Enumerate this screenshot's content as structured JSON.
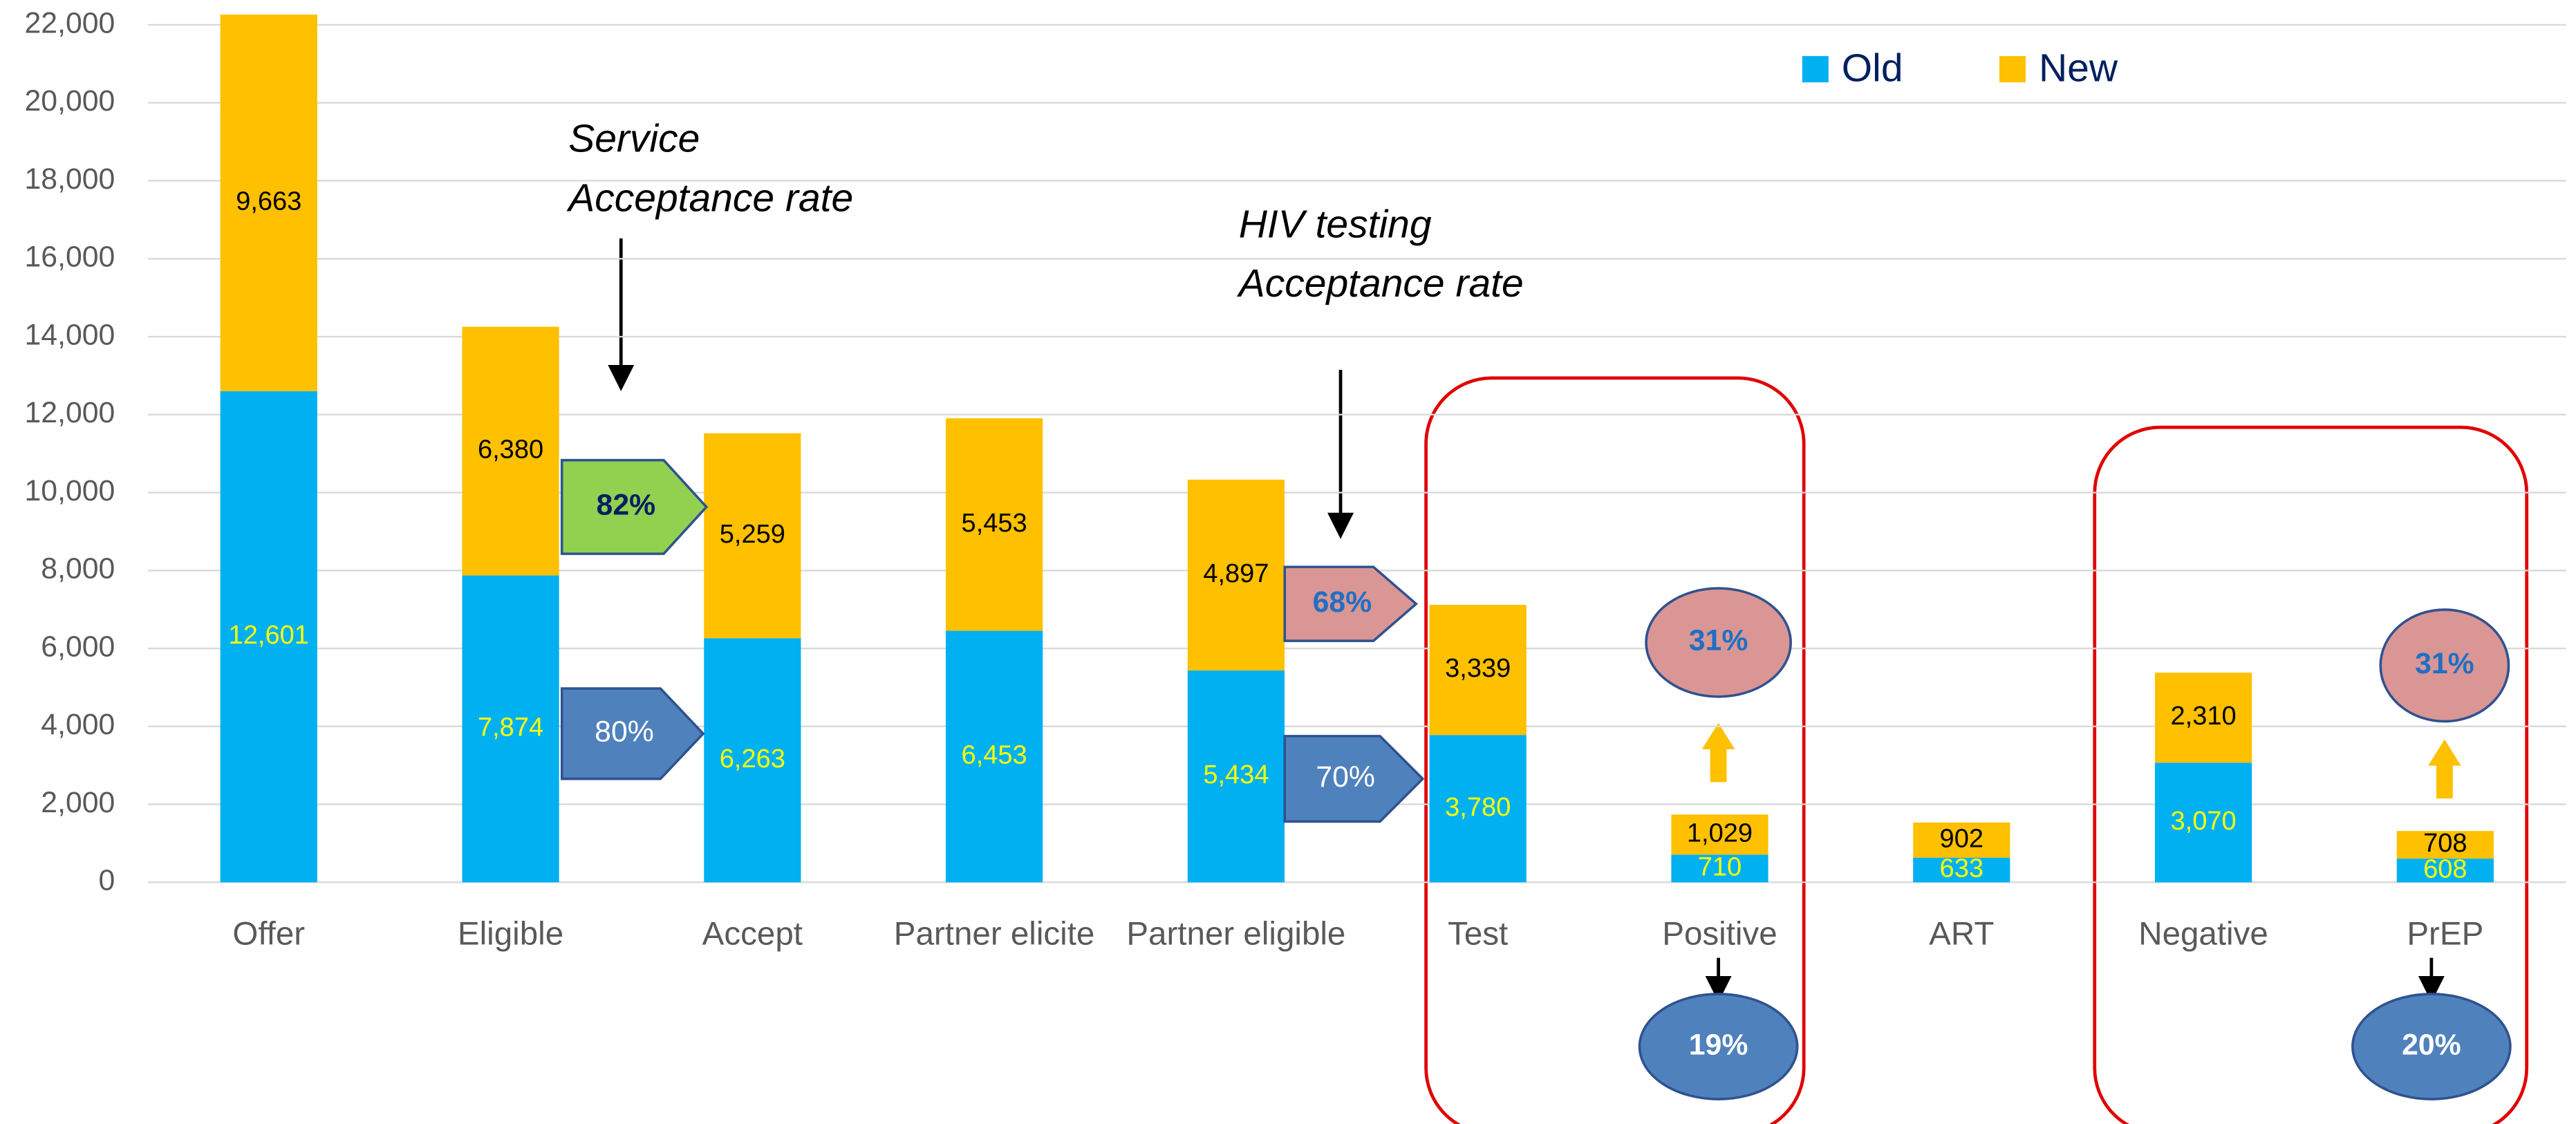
{
  "chart_data": {
    "type": "stacked_bar",
    "categories": [
      "Offer",
      "Eligible",
      "Accept",
      "Partner elicite",
      "Partner eligible",
      "Test",
      "Positive",
      "ART",
      "Negative",
      "PrEP"
    ],
    "series": [
      {
        "name": "Old",
        "color": "#00b0f0",
        "label_color": "#ffff00",
        "values": [
          12601,
          7874,
          6263,
          6453,
          5434,
          3780,
          710,
          633,
          3070,
          608
        ],
        "value_labels": [
          "12,601",
          "7,874",
          "6,263",
          "6,453",
          "5,434",
          "3,780",
          "710",
          "633",
          "3,070",
          "608"
        ]
      },
      {
        "name": "New",
        "color": "#ffc000",
        "label_color": "#000000",
        "values": [
          9663,
          6380,
          5259,
          5453,
          4897,
          3339,
          1029,
          902,
          2310,
          708
        ],
        "value_labels": [
          "9,663",
          "6,380",
          "5,259",
          "5,453",
          "4,897",
          "3,339",
          "1,029",
          "902",
          "2,310",
          "708"
        ]
      }
    ],
    "ylim": [
      0,
      22000
    ],
    "yticks": [
      {
        "value": 0,
        "label": "0"
      },
      {
        "value": 2000,
        "label": "2,000"
      },
      {
        "value": 4000,
        "label": "4,000"
      },
      {
        "value": 6000,
        "label": "6,000"
      },
      {
        "value": 8000,
        "label": "8,000"
      },
      {
        "value": 10000,
        "label": "10,000"
      },
      {
        "value": 12000,
        "label": "12,000"
      },
      {
        "value": 14000,
        "label": "14,000"
      },
      {
        "value": 16000,
        "label": "16,000"
      },
      {
        "value": 18000,
        "label": "18,000"
      },
      {
        "value": 20000,
        "label": "20,000"
      },
      {
        "value": 22000,
        "label": "22,000"
      }
    ],
    "grid": true,
    "legend": "top-right",
    "annotations": [
      [
        "Service",
        "Acceptance rate"
      ],
      [
        "HIV testing",
        "Acceptance rate"
      ]
    ],
    "callouts": [
      "82%",
      "80%",
      "68%",
      "70%",
      "31%",
      "19%",
      "31%",
      "20%"
    ]
  }
}
